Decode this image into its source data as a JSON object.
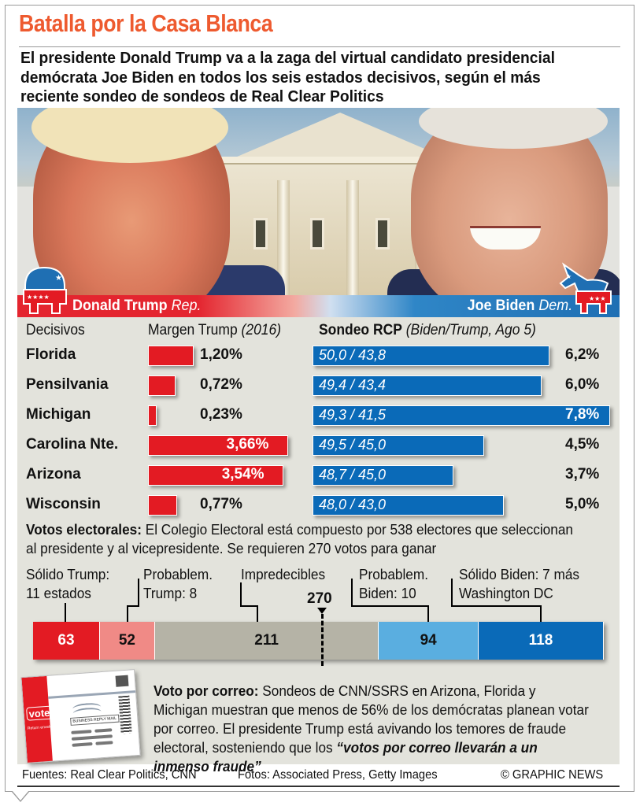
{
  "title": "Batalla por la Casa Blanca",
  "subtitle": "El presidente Donald Trump va a la zaga del virtual candidato presidencial demócrata Joe Biden en todos los seis estados decisivos, según el más reciente sondeo de sondeos de Real Clear Politics",
  "candidates": {
    "trump": {
      "name": "Donald Trump",
      "party": "Rep.",
      "logo_icon": "republican-elephant-icon",
      "color": "#e31b23"
    },
    "biden": {
      "name": "Joe Biden",
      "party": "Dem.",
      "logo_icon": "democratic-donkey-icon",
      "color": "#0a6ab8"
    }
  },
  "table_headers": {
    "states": "Decisivos",
    "margin_label": "Margen Trump",
    "margin_note": "(2016)",
    "poll_label": "Sondeo RCP",
    "poll_note": "(Biden/Trump, Ago 5)"
  },
  "colors": {
    "title": "#ee5a2f",
    "trump_red": "#e31b23",
    "lean_trump": "#f08a86",
    "toss_up": "#b5b3a6",
    "lean_biden": "#5aaee0",
    "solid_biden": "#0a6ab8",
    "panel_bg": "#e3e3dc"
  },
  "chart_data": [
    {
      "type": "bar",
      "title": "Margen Trump (2016)",
      "categories": [
        "Florida",
        "Pensilvania",
        "Michigan",
        "Carolina Nte.",
        "Arizona",
        "Wisconsin"
      ],
      "values": [
        1.2,
        0.72,
        0.23,
        3.66,
        3.54,
        0.77
      ],
      "labels": [
        "1,20%",
        "0,72%",
        "0,23%",
        "3,66%",
        "3,54%",
        "0,77%"
      ],
      "unit": "%",
      "orientation": "horizontal"
    },
    {
      "type": "bar",
      "title": "Sondeo RCP (Biden/Trump, Ago 5)",
      "categories": [
        "Florida",
        "Pensilvania",
        "Michigan",
        "Carolina Nte.",
        "Arizona",
        "Wisconsin"
      ],
      "series": [
        {
          "name": "Biden",
          "values": [
            50.0,
            49.4,
            49.3,
            49.5,
            48.7,
            48.0
          ]
        },
        {
          "name": "Trump",
          "values": [
            43.8,
            43.4,
            41.5,
            45.0,
            45.0,
            43.0
          ]
        }
      ],
      "poll_labels": [
        "50,0 / 43,8",
        "49,4 / 43,4",
        "49,3 / 41,5",
        "49,5 / 45,0",
        "48,7 / 45,0",
        "48,0 / 43,0"
      ],
      "margins": [
        6.2,
        6.0,
        7.8,
        4.5,
        3.7,
        5.0
      ],
      "margin_labels": [
        "6,2%",
        "6,0%",
        "7,8%",
        "4,5%",
        "3,7%",
        "5,0%"
      ],
      "unit": "%",
      "orientation": "horizontal"
    },
    {
      "type": "bar",
      "title": "Votos electorales",
      "stacked": true,
      "total": 538,
      "threshold": 270,
      "threshold_label": "270",
      "categories": [
        "Sólido Trump: 11 estados",
        "Probablem. Trump: 8",
        "Impredecibles",
        "Probablem. Biden: 10",
        "Sólido Biden: 7 más Washington DC"
      ],
      "values": [
        63,
        52,
        211,
        94,
        118
      ]
    }
  ],
  "electoral": {
    "lead": "Votos electorales:",
    "text": "El Colegio Electoral está compuesto por 538 electores que seleccionan al presidente y al vicepresidente. Se requieren 270 votos para ganar",
    "labels": [
      {
        "line1": "Sólido Trump:",
        "line2": "11 estados"
      },
      {
        "line1": "Probablem.",
        "line2": "Trump: 8"
      },
      {
        "line1": "Impredecibles",
        "line2": ""
      },
      {
        "line1": "Probablem.",
        "line2": "Biden: 10"
      },
      {
        "line1": "Sólido Biden: 7 más",
        "line2": "Washington DC"
      }
    ]
  },
  "mail_vote": {
    "lead": "Voto por correo:",
    "text": "Sondeos de CNN/SSRS en Arizona, Florida y Michigan muestran que menos de 56% de los demócratas planean votar por correo. El presidente Trump está avivando los temores de fraude electoral, sosteniendo que los",
    "quote": "“votos por correo llevarán a un inmenso fraude”",
    "envelope": {
      "vote": "vote!",
      "return": "Return envelope",
      "reply": "BUSINESS REPLY MAIL",
      "icon": "mail-ballot-envelope-icon"
    }
  },
  "footer": {
    "sources": "Fuentes: Real Clear Politics, CNN",
    "photos": "Fotos: Associated Press, Getty Images",
    "credit": "© GRAPHIC NEWS"
  }
}
